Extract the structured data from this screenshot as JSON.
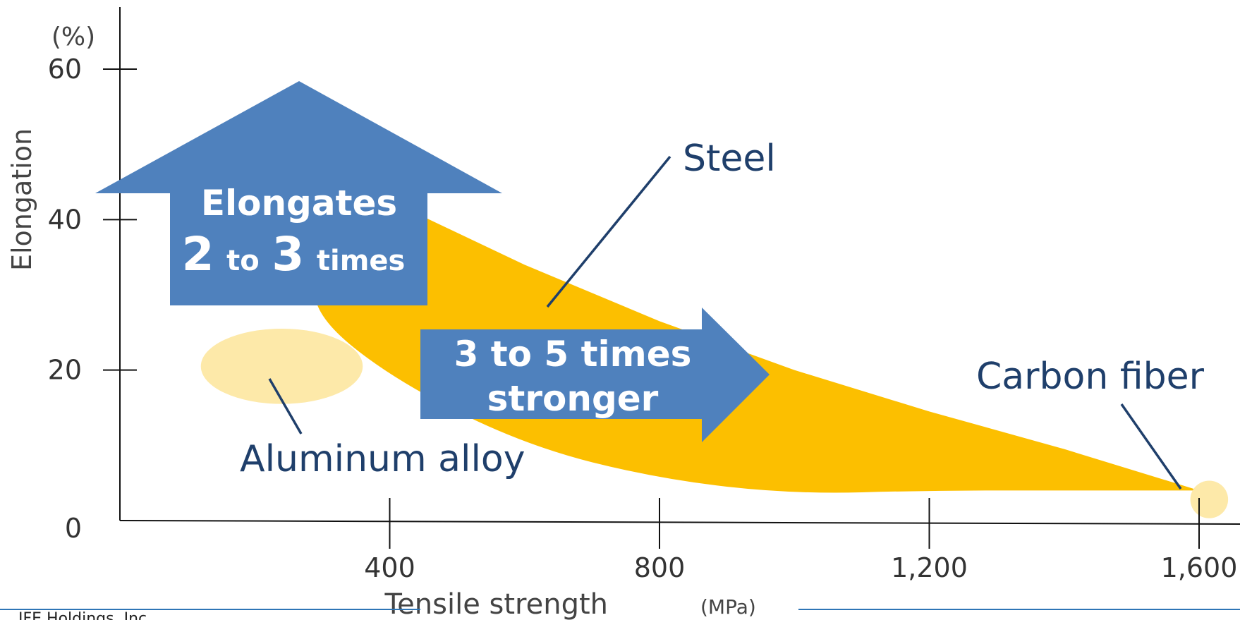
{
  "chart_data": {
    "type": "area",
    "xlabel": "Tensile strength",
    "xunit": "(MPa)",
    "ylabel": "Elongation",
    "yunit": "(%)",
    "xlim": [
      0,
      1750
    ],
    "ylim": [
      0,
      62
    ],
    "x_ticks": [
      {
        "value": 400,
        "label": "400"
      },
      {
        "value": 800,
        "label": "800"
      },
      {
        "value": 1200,
        "label": "1,200"
      },
      {
        "value": 1600,
        "label": "1,600"
      }
    ],
    "y_ticks": [
      {
        "value": 0,
        "label": "0"
      },
      {
        "value": 20,
        "label": "20"
      },
      {
        "value": 40,
        "label": "40"
      },
      {
        "value": 60,
        "label": "60"
      }
    ],
    "regions": [
      {
        "name": "Steel",
        "color": "#fcbf00",
        "upper": [
          [
            400,
            42.5
          ],
          [
            600,
            34
          ],
          [
            800,
            26.5
          ],
          [
            1000,
            20
          ],
          [
            1200,
            14.5
          ],
          [
            1400,
            9.5
          ],
          [
            1600,
            4
          ]
        ],
        "lower": [
          [
            1600,
            4
          ],
          [
            1400,
            4
          ],
          [
            1200,
            4
          ],
          [
            1000,
            3.5
          ],
          [
            800,
            5.5
          ],
          [
            600,
            10
          ],
          [
            400,
            19
          ],
          [
            280,
            28
          ],
          [
            300,
            35
          ]
        ]
      },
      {
        "name": "Aluminum alloy",
        "color": "#fde9a9",
        "center": [
          240,
          20.5
        ],
        "x_halfwidth": 120,
        "y_halfheight": 5
      },
      {
        "name": "Carbon fiber",
        "color": "#fde9a9",
        "center": [
          1615,
          2.8
        ],
        "x_halfwidth": 28,
        "y_halfheight": 2.5
      }
    ],
    "annotations": {
      "steel": "Steel",
      "aluminum": "Aluminum alloy",
      "carbon": "Carbon fiber",
      "up_arrow": {
        "line1": "Elongates",
        "num1": "2",
        "word1": "to",
        "num2": "3",
        "word2": "times"
      },
      "right_arrow": {
        "line1": "3 to 5 times",
        "line2": "stronger"
      }
    },
    "colors": {
      "arrow": "#4f81bd",
      "label": "#1f3f6b",
      "axis": "#111111",
      "footer_line": "#2e75b6"
    }
  },
  "footer": {
    "credit": "JFE Holdings, Inc."
  }
}
